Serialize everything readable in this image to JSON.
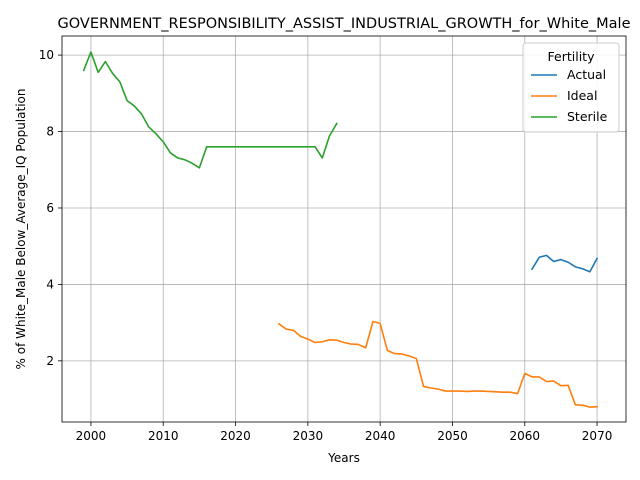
{
  "chart_data": {
    "type": "line",
    "title": "GOVERNMENT_RESPONSIBILITY_ASSIST_INDUSTRIAL_GROWTH_for_White_Male",
    "xlabel": "Years",
    "ylabel": "% of White_Male Below_Average_IQ Population",
    "xlim": [
      1996,
      2074
    ],
    "ylim": [
      0.4,
      10.5
    ],
    "xticks": [
      2000,
      2010,
      2020,
      2030,
      2040,
      2050,
      2060,
      2070
    ],
    "yticks": [
      2,
      4,
      6,
      8,
      10
    ],
    "grid": true,
    "legend": {
      "title": "Fertility",
      "position": "top-right"
    },
    "series": [
      {
        "name": "Actual",
        "color": "#1f77b4",
        "x": [
          2061,
          2062,
          2063,
          2064,
          2065,
          2066,
          2067,
          2068,
          2069,
          2070
        ],
        "y": [
          4.4,
          4.71,
          4.76,
          4.6,
          4.65,
          4.58,
          4.46,
          4.41,
          4.33,
          4.68
        ]
      },
      {
        "name": "Ideal",
        "color": "#ff7f0e",
        "x": [
          2026,
          2027,
          2028,
          2029,
          2030,
          2031,
          2032,
          2033,
          2034,
          2035,
          2036,
          2037,
          2038,
          2039,
          2040,
          2041,
          2042,
          2043,
          2044,
          2045,
          2046,
          2047,
          2048,
          2049,
          2050,
          2051,
          2052,
          2053,
          2054,
          2055,
          2056,
          2057,
          2058,
          2059,
          2060,
          2061,
          2062,
          2063,
          2064,
          2065,
          2066,
          2067,
          2068,
          2069,
          2070
        ],
        "y": [
          2.97,
          2.83,
          2.8,
          2.64,
          2.57,
          2.48,
          2.5,
          2.55,
          2.54,
          2.48,
          2.44,
          2.43,
          2.34,
          3.03,
          2.98,
          2.27,
          2.19,
          2.18,
          2.13,
          2.06,
          1.33,
          1.29,
          1.26,
          1.21,
          1.21,
          1.21,
          1.2,
          1.21,
          1.21,
          1.2,
          1.19,
          1.18,
          1.18,
          1.14,
          1.67,
          1.58,
          1.58,
          1.46,
          1.47,
          1.35,
          1.36,
          0.85,
          0.84,
          0.79,
          0.8
        ]
      },
      {
        "name": "Sterile",
        "color": "#2ca02c",
        "x": [
          1999,
          2000,
          2001,
          2002,
          2003,
          2004,
          2005,
          2006,
          2007,
          2008,
          2009,
          2010,
          2011,
          2012,
          2013,
          2014,
          2015,
          2016,
          2017,
          2018,
          2019,
          2020,
          2021,
          2022,
          2023,
          2024,
          2025,
          2026,
          2027,
          2028,
          2029,
          2030,
          2031,
          2032,
          2033,
          2034
        ],
        "y": [
          9.6,
          10.08,
          9.55,
          9.83,
          9.52,
          9.3,
          8.81,
          8.67,
          8.46,
          8.12,
          7.94,
          7.73,
          7.44,
          7.31,
          7.26,
          7.17,
          7.05,
          7.6,
          7.6,
          7.6,
          7.6,
          7.6,
          7.6,
          7.6,
          7.6,
          7.6,
          7.6,
          7.6,
          7.6,
          7.6,
          7.6,
          7.6,
          7.6,
          7.31,
          7.89,
          8.21
        ]
      }
    ]
  }
}
